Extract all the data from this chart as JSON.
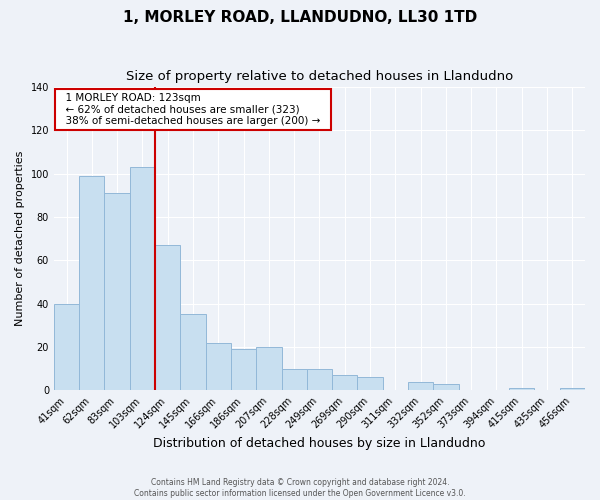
{
  "title": "1, MORLEY ROAD, LLANDUDNO, LL30 1TD",
  "subtitle": "Size of property relative to detached houses in Llandudno",
  "xlabel": "Distribution of detached houses by size in Llandudno",
  "ylabel": "Number of detached properties",
  "bar_labels": [
    "41sqm",
    "62sqm",
    "83sqm",
    "103sqm",
    "124sqm",
    "145sqm",
    "166sqm",
    "186sqm",
    "207sqm",
    "228sqm",
    "249sqm",
    "269sqm",
    "290sqm",
    "311sqm",
    "332sqm",
    "352sqm",
    "373sqm",
    "394sqm",
    "415sqm",
    "435sqm",
    "456sqm"
  ],
  "bar_values": [
    40,
    99,
    91,
    103,
    67,
    35,
    22,
    19,
    20,
    10,
    10,
    7,
    6,
    0,
    4,
    3,
    0,
    0,
    1,
    0,
    1
  ],
  "bar_color": "#c8dff0",
  "bar_edge_color": "#92b8d8",
  "vline_color": "#cc0000",
  "ylim": [
    0,
    140
  ],
  "annotation_title": "1 MORLEY ROAD: 123sqm",
  "annotation_line1": "← 62% of detached houses are smaller (323)",
  "annotation_line2": "38% of semi-detached houses are larger (200) →",
  "footer_line1": "Contains HM Land Registry data © Crown copyright and database right 2024.",
  "footer_line2": "Contains public sector information licensed under the Open Government Licence v3.0.",
  "background_color": "#eef2f8",
  "title_fontsize": 11,
  "subtitle_fontsize": 9.5,
  "tick_fontsize": 7,
  "ylabel_fontsize": 8,
  "xlabel_fontsize": 9,
  "footer_fontsize": 5.5
}
